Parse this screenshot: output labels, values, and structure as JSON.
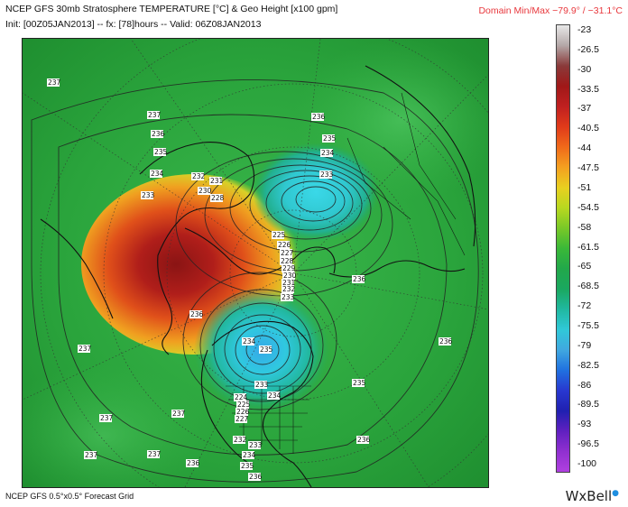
{
  "header": {
    "title": "NCEP GFS 30mb Stratosphere TEMPERATURE [°C] & Geo Height [x100 gpm]",
    "init_line": "Init: [00Z05JAN2013] -- fx: [78]hours -- Valid: 06Z08JAN2013",
    "domain_minmax": "Domain Min/Max −79.9° / −31.1°C"
  },
  "colorbar": {
    "ticks": [
      "-23",
      "-26.5",
      "-30",
      "-33.5",
      "-37",
      "-40.5",
      "-44",
      "-47.5",
      "-51",
      "-54.5",
      "-58",
      "-61.5",
      "-65",
      "-68.5",
      "-72",
      "-75.5",
      "-79",
      "-82.5",
      "-86",
      "-89.5",
      "-93",
      "-96.5",
      "-100"
    ],
    "colors": [
      "#e8e8e8",
      "#b4a8a8",
      "#8a3a3a",
      "#a01818",
      "#c02020",
      "#e03a1a",
      "#f06a1a",
      "#f4a020",
      "#e8d020",
      "#b8d820",
      "#78c828",
      "#3ab838",
      "#22a84a",
      "#1aa860",
      "#20b8a0",
      "#30c8d8",
      "#40a8e0",
      "#2070e0",
      "#2838d0",
      "#2020b0",
      "#6020c0",
      "#9030d0",
      "#b040e0"
    ]
  },
  "map_labels": [
    {
      "text": "237"
    },
    {
      "text": "237"
    },
    {
      "text": "237"
    },
    {
      "text": "236"
    },
    {
      "text": "235"
    },
    {
      "text": "234"
    },
    {
      "text": "233"
    },
    {
      "text": "232"
    },
    {
      "text": "231"
    },
    {
      "text": "230"
    },
    {
      "text": "228"
    },
    {
      "text": "237"
    },
    {
      "text": "236"
    },
    {
      "text": "235"
    },
    {
      "text": "234"
    },
    {
      "text": "233"
    },
    {
      "text": "225"
    },
    {
      "text": "226"
    },
    {
      "text": "227"
    },
    {
      "text": "228"
    },
    {
      "text": "229"
    },
    {
      "text": "230"
    },
    {
      "text": "231"
    },
    {
      "text": "232"
    },
    {
      "text": "233"
    },
    {
      "text": "236"
    },
    {
      "text": "236"
    },
    {
      "text": "234"
    },
    {
      "text": "235"
    },
    {
      "text": "237"
    },
    {
      "text": "236"
    },
    {
      "text": "234"
    },
    {
      "text": "235"
    },
    {
      "text": "233"
    },
    {
      "text": "236"
    },
    {
      "text": "224"
    },
    {
      "text": "225"
    },
    {
      "text": "226"
    },
    {
      "text": "227"
    },
    {
      "text": "232"
    },
    {
      "text": "233"
    },
    {
      "text": "234"
    },
    {
      "text": "235"
    },
    {
      "text": "236"
    },
    {
      "text": "237"
    },
    {
      "text": "237"
    },
    {
      "text": "236"
    },
    {
      "text": "237"
    },
    {
      "text": "237"
    },
    {
      "text": "237"
    },
    {
      "text": "237"
    }
  ],
  "footer": {
    "text": "NCEP GFS 0.5°x0.5° Forecast Grid"
  },
  "logo": {
    "text": "WxBell"
  }
}
